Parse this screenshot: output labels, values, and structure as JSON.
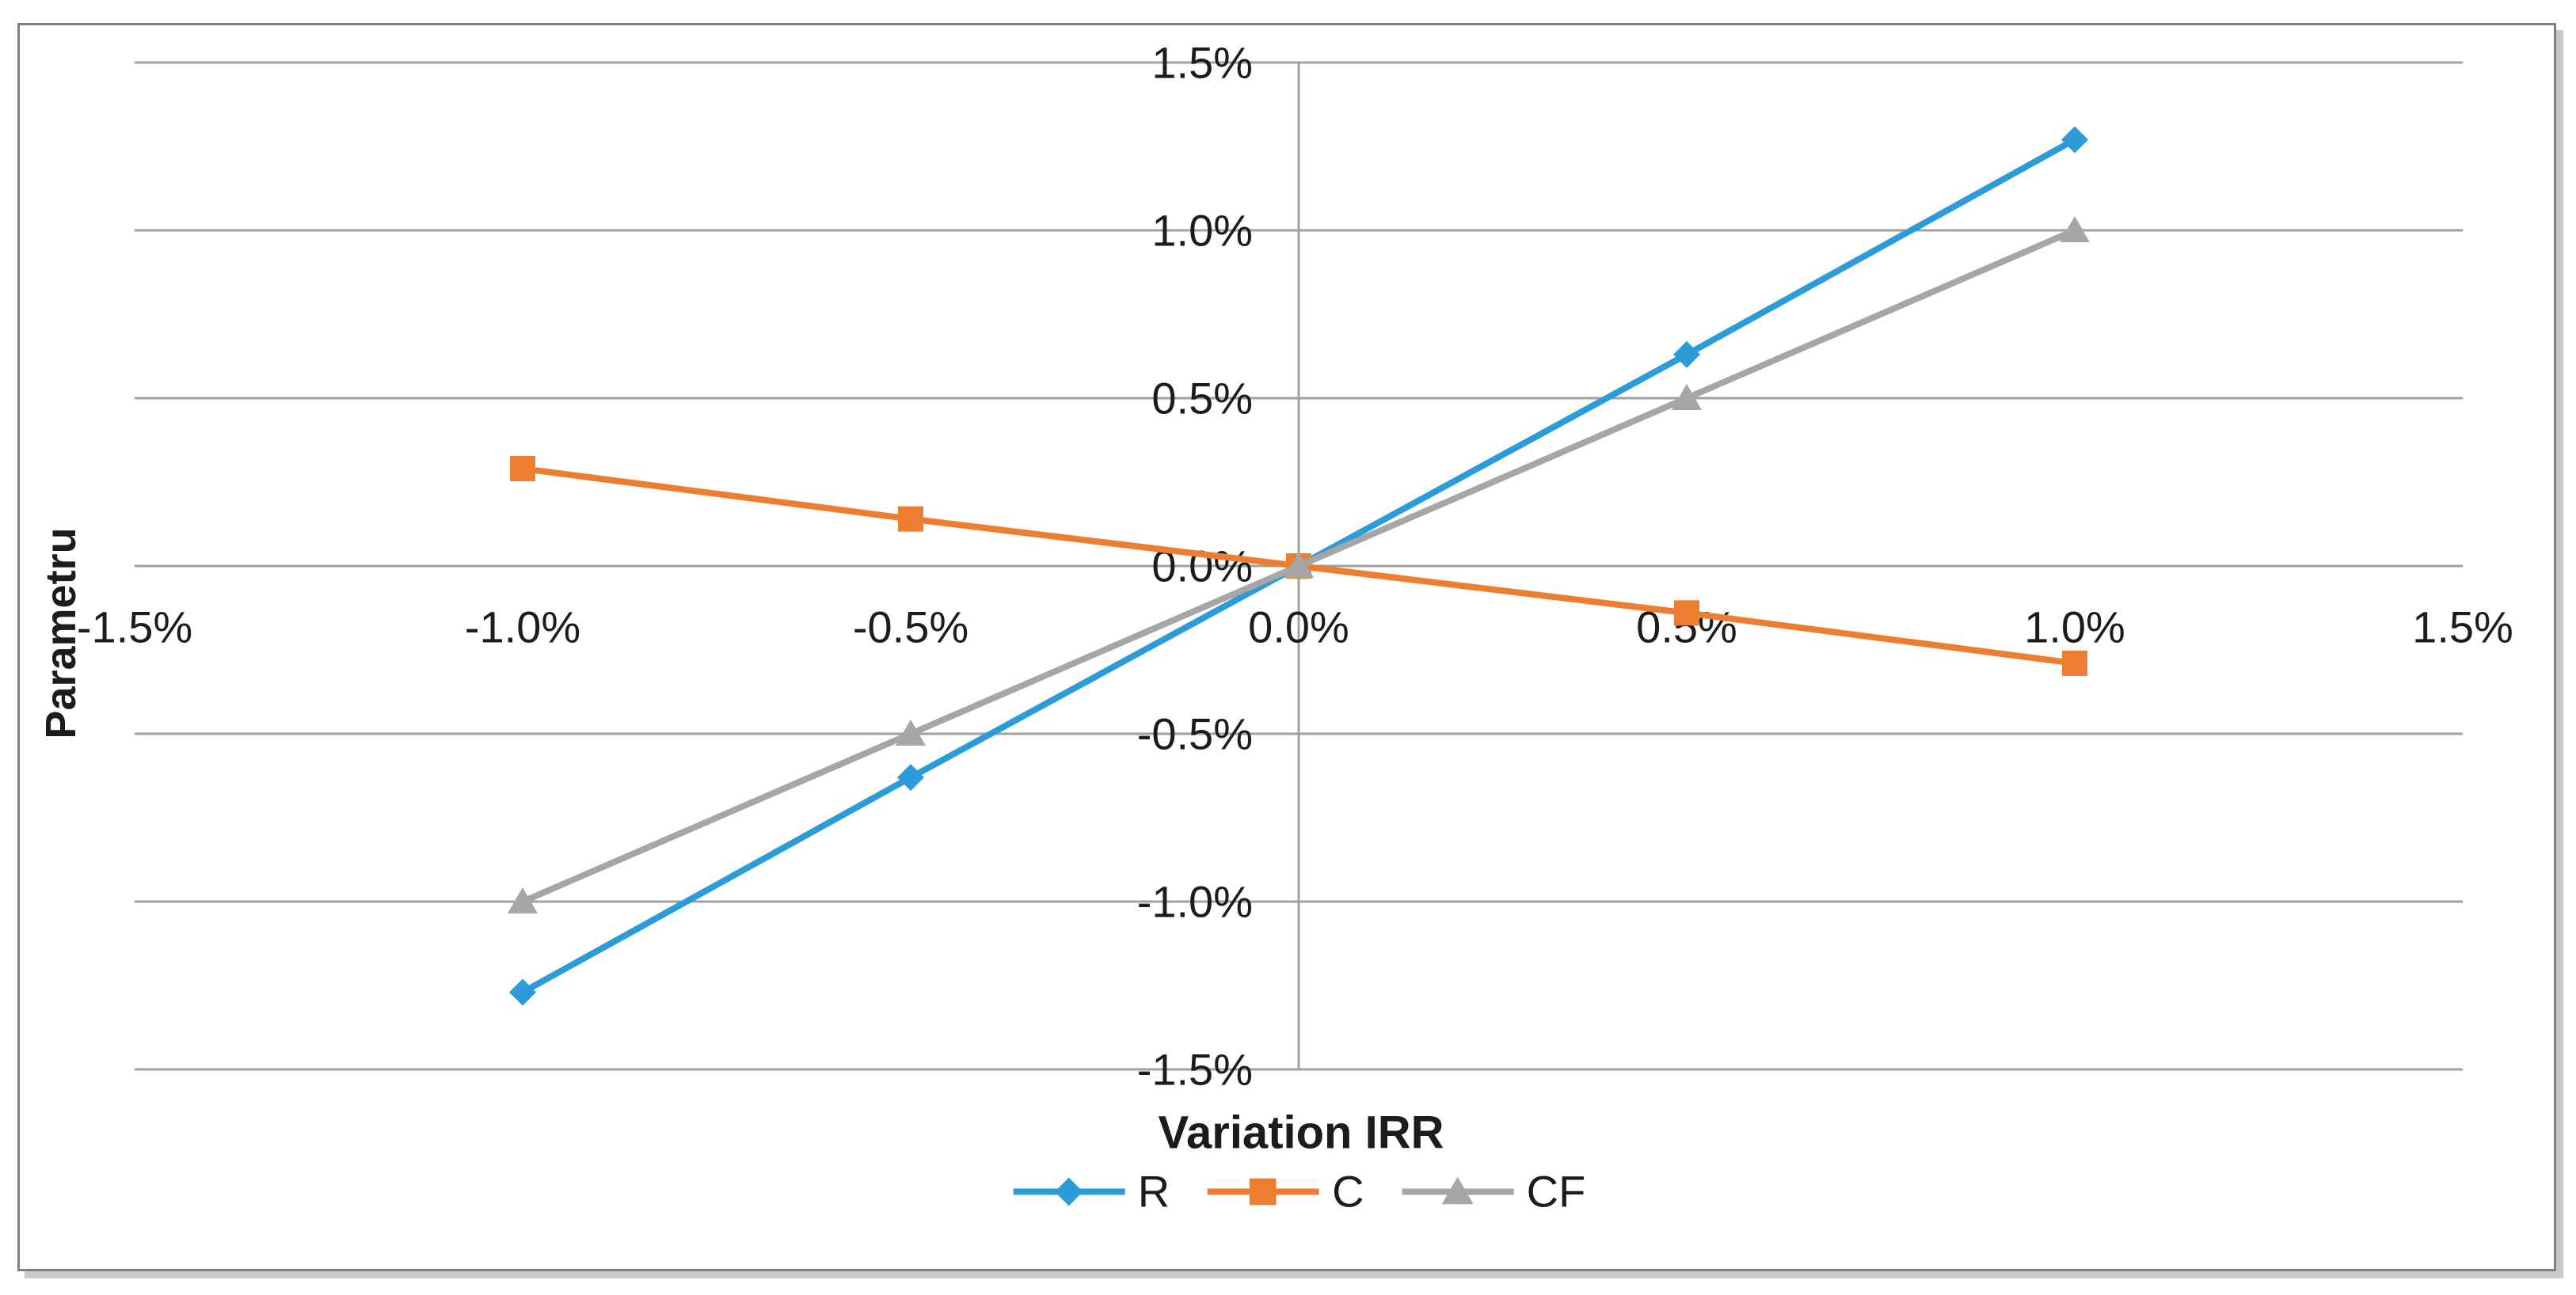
{
  "chart_data": {
    "type": "line",
    "title": "",
    "xlabel": "Variation IRR",
    "ylabel": "Parametru",
    "x_tick_labels": [
      "-1.5%",
      "-1.0%",
      "-0.5%",
      "0.0%",
      "0.5%",
      "1.0%",
      "1.5%"
    ],
    "x_tick_values": [
      -1.5,
      -1.0,
      -0.5,
      0.0,
      0.5,
      1.0,
      1.5
    ],
    "y_tick_labels": [
      "1.5%",
      "1.0%",
      "0.5%",
      "0.0%",
      "-0.5%",
      "-1.0%",
      "-1.5%"
    ],
    "y_tick_values": [
      1.5,
      1.0,
      0.5,
      0.0,
      -0.5,
      -1.0,
      -1.5
    ],
    "xlim": [
      -1.5,
      1.5
    ],
    "ylim": [
      -1.5,
      1.5
    ],
    "grid": true,
    "legend_position": "bottom",
    "x": [
      -1.0,
      -0.5,
      0.0,
      0.5,
      1.0
    ],
    "series": [
      {
        "name": "R",
        "marker": "diamond",
        "color": "#2B9CD9",
        "values": [
          -1.27,
          -0.63,
          0.0,
          0.63,
          1.27
        ]
      },
      {
        "name": "C",
        "marker": "square",
        "color": "#ED7D31",
        "values": [
          0.29,
          0.14,
          0.0,
          -0.14,
          -0.29
        ]
      },
      {
        "name": "CF",
        "marker": "triangle",
        "color": "#A6A6A6",
        "values": [
          -1.0,
          -0.5,
          0.0,
          0.5,
          1.0
        ]
      }
    ]
  },
  "colors": {
    "gridline": "#a0a0a0",
    "axis_line": "#a0a0a0",
    "border": "#7f7f7f",
    "text": "#1c1c1c",
    "background": "#ffffff"
  }
}
